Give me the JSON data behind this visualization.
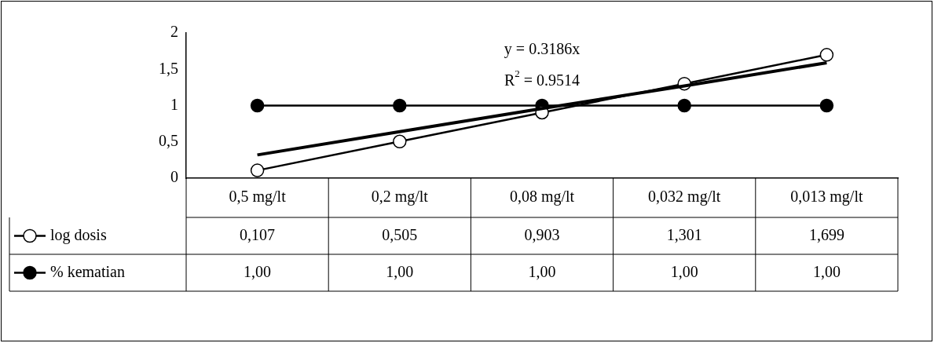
{
  "chart_data": {
    "type": "line",
    "categories": [
      "0,5 mg/lt",
      "0,2 mg/lt",
      "0,08 mg/lt",
      "0,032 mg/lt",
      "0,013 mg/lt"
    ],
    "series": [
      {
        "name": "log dosis",
        "color": "#ffffff",
        "values": [
          0.107,
          0.505,
          0.903,
          1.301,
          1.699
        ],
        "value_labels": [
          "0,107",
          "0,505",
          "0,903",
          "1,301",
          "1,699"
        ]
      },
      {
        "name": "% kematian",
        "color": "#000000",
        "values": [
          1.0,
          1.0,
          1.0,
          1.0,
          1.0
        ],
        "value_labels": [
          "1,00",
          "1,00",
          "1,00",
          "1,00",
          "1,00"
        ]
      },
      {
        "type": "line",
        "color": "#000000",
        "marker": "none",
        "values": [
          0.32,
          0.64,
          0.96,
          1.27,
          1.59
        ]
      }
    ],
    "annotations": [
      "y = 0.3186x",
      "R$^{2}$ = 0.9514"
    ],
    "ylim": [
      0,
      2
    ],
    "yticks": [
      0,
      {
        "value": 0.5,
        "label": "0,5"
      },
      1,
      {
        "value": 1.5,
        "label": "1,5"
      },
      2
    ],
    "grid": false,
    "legend": "bottom",
    "marker": "circle",
    "line_style": "solid"
  }
}
